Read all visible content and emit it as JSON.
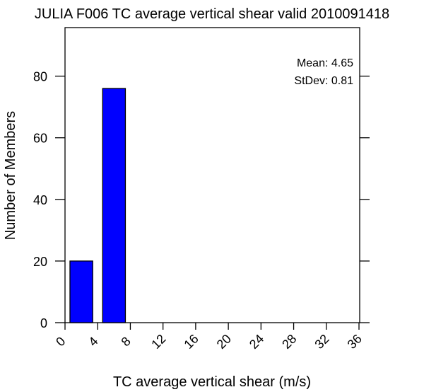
{
  "chart_data": {
    "type": "bar",
    "title": "JULIA F006 TC average vertical shear valid 2010091418",
    "xlabel": "TC average vertical shear (m/s)",
    "ylabel": "Number of Members",
    "bins": [
      {
        "from": 0,
        "to": 4,
        "count": 20
      },
      {
        "from": 4,
        "to": 8,
        "count": 76
      }
    ],
    "xlim": [
      0,
      36
    ],
    "ylim": [
      0,
      100
    ],
    "x_ticks": [
      0,
      4,
      8,
      12,
      16,
      20,
      24,
      28,
      32,
      36
    ],
    "y_ticks": [
      0,
      20,
      40,
      60,
      80
    ],
    "annotations": [
      "Mean: 4.65",
      "StDev: 0.81"
    ],
    "bar_color": "#0000ff",
    "grid": false
  }
}
